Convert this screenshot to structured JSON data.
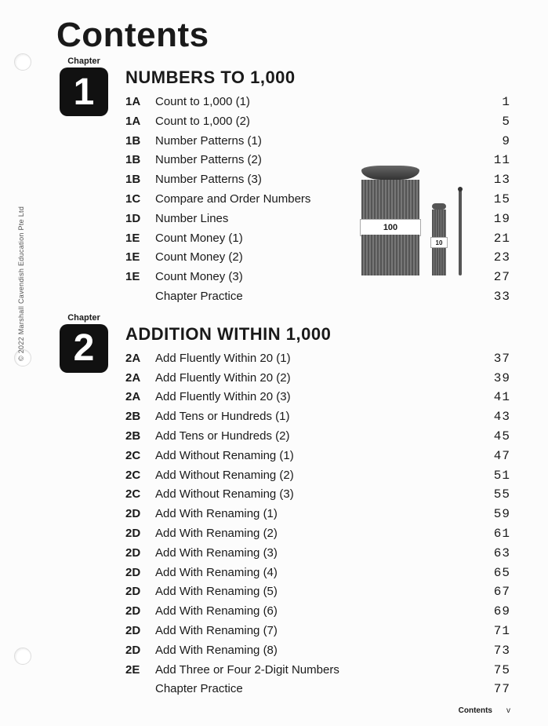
{
  "page_title": "Contents",
  "chapter_label": "Chapter",
  "copyright": "© 2022 Marshall Cavendish Education Pte Ltd",
  "footer": {
    "label": "Contents",
    "page": "v"
  },
  "illustration": {
    "label_100": "100",
    "label_10": "10"
  },
  "chapters": [
    {
      "number": "1",
      "title": "NUMBERS TO 1,000",
      "rows": [
        {
          "code": "1A",
          "title": "Count to 1,000 (1)",
          "page": "1"
        },
        {
          "code": "1A",
          "title": "Count to 1,000 (2)",
          "page": "5"
        },
        {
          "code": "1B",
          "title": "Number Patterns (1)",
          "page": "9"
        },
        {
          "code": "1B",
          "title": "Number Patterns (2)",
          "page": "11"
        },
        {
          "code": "1B",
          "title": "Number Patterns (3)",
          "page": "13"
        },
        {
          "code": "1C",
          "title": "Compare and Order Numbers",
          "page": "15"
        },
        {
          "code": "1D",
          "title": "Number Lines",
          "page": "19"
        },
        {
          "code": "1E",
          "title": "Count Money (1)",
          "page": "21"
        },
        {
          "code": "1E",
          "title": "Count Money (2)",
          "page": "23"
        },
        {
          "code": "1E",
          "title": "Count Money (3)",
          "page": "27"
        }
      ],
      "practice": {
        "title": "Chapter Practice",
        "page": "33"
      }
    },
    {
      "number": "2",
      "title": "ADDITION WITHIN 1,000",
      "rows": [
        {
          "code": "2A",
          "title": "Add Fluently Within 20 (1)",
          "page": "37"
        },
        {
          "code": "2A",
          "title": "Add Fluently Within 20 (2)",
          "page": "39"
        },
        {
          "code": "2A",
          "title": "Add Fluently Within 20 (3)",
          "page": "41"
        },
        {
          "code": "2B",
          "title": "Add Tens or Hundreds (1)",
          "page": "43"
        },
        {
          "code": "2B",
          "title": "Add Tens or Hundreds (2)",
          "page": "45"
        },
        {
          "code": "2C",
          "title": "Add Without Renaming (1)",
          "page": "47"
        },
        {
          "code": "2C",
          "title": "Add Without Renaming (2)",
          "page": "51"
        },
        {
          "code": "2C",
          "title": "Add Without Renaming (3)",
          "page": "55"
        },
        {
          "code": "2D",
          "title": "Add With Renaming (1)",
          "page": "59"
        },
        {
          "code": "2D",
          "title": "Add With Renaming (2)",
          "page": "61"
        },
        {
          "code": "2D",
          "title": "Add With Renaming (3)",
          "page": "63"
        },
        {
          "code": "2D",
          "title": "Add With Renaming (4)",
          "page": "65"
        },
        {
          "code": "2D",
          "title": "Add With Renaming (5)",
          "page": "67"
        },
        {
          "code": "2D",
          "title": "Add With Renaming (6)",
          "page": "69"
        },
        {
          "code": "2D",
          "title": "Add With Renaming (7)",
          "page": "71"
        },
        {
          "code": "2D",
          "title": "Add With Renaming (8)",
          "page": "73"
        },
        {
          "code": "2E",
          "title": "Add Three or Four 2-Digit Numbers",
          "page": "75"
        }
      ],
      "practice": {
        "title": "Chapter Practice",
        "page": "77"
      }
    }
  ]
}
